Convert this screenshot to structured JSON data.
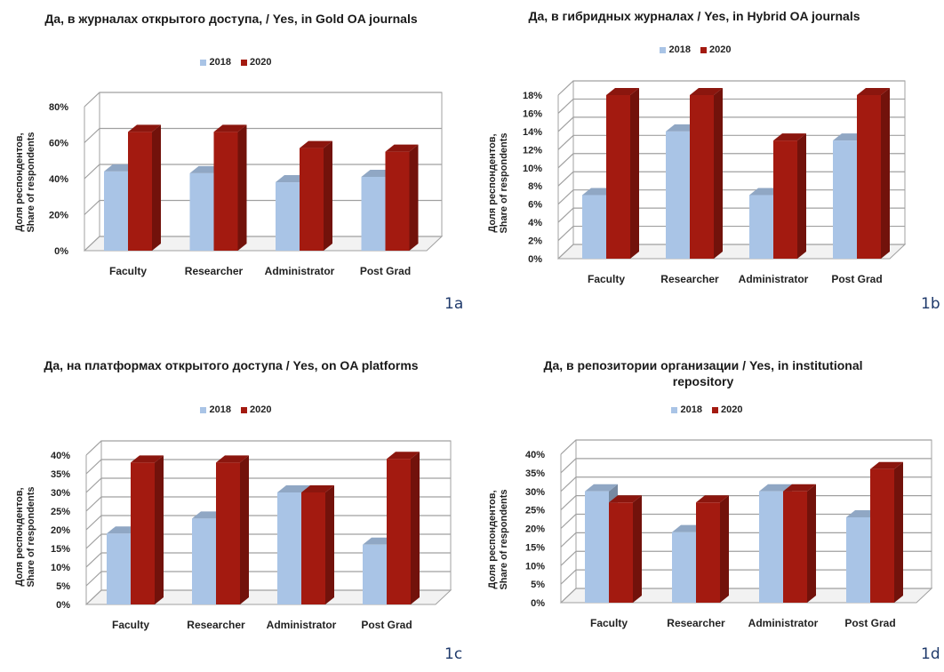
{
  "colors": {
    "c2018": "#a9c4e6",
    "c2020": "#a31a10",
    "grid": "#a0a0a0",
    "panel_label": "#1f3a6b"
  },
  "legend_labels": [
    "2018",
    "2020"
  ],
  "ylabel": {
    "line1": "Доля респондентов,",
    "line2": "Share of respondents"
  },
  "chart_data": [
    {
      "id": "1a",
      "type": "bar",
      "title": "Да, в журналах открытого доступа, / Yes, in Gold OA journals",
      "categories": [
        "Faculty",
        "Researcher",
        "Administrator",
        "Post Grad"
      ],
      "series": [
        {
          "name": "2018",
          "values": [
            44,
            43,
            38,
            41
          ]
        },
        {
          "name": "2020",
          "values": [
            66,
            66,
            57,
            55
          ]
        }
      ],
      "ylim": [
        0,
        80
      ],
      "yticks": [
        "0%",
        "20%",
        "40%",
        "60%",
        "80%"
      ],
      "ylabel": "Доля респондентов, Share of respondents",
      "panel_label": "1a"
    },
    {
      "id": "1b",
      "type": "bar",
      "title": "Да, в гибридных журналах / Yes, in Hybrid OA journals",
      "categories": [
        "Faculty",
        "Researcher",
        "Administrator",
        "Post Grad"
      ],
      "series": [
        {
          "name": "2018",
          "values": [
            7,
            14,
            7,
            13
          ]
        },
        {
          "name": "2020",
          "values": [
            18,
            18,
            13,
            18
          ]
        }
      ],
      "ylim": [
        0,
        18
      ],
      "yticks": [
        "0%",
        "2%",
        "4%",
        "6%",
        "8%",
        "10%",
        "12%",
        "14%",
        "16%",
        "18%"
      ],
      "ylabel": "Доля респондентов, Share of respondents",
      "panel_label": "1b"
    },
    {
      "id": "1c",
      "type": "bar",
      "title": "Да, на  платформах открытого доступа / Yes, on OA platforms",
      "categories": [
        "Faculty",
        "Researcher",
        "Administrator",
        "Post Grad"
      ],
      "series": [
        {
          "name": "2018",
          "values": [
            19,
            23,
            30,
            16
          ]
        },
        {
          "name": "2020",
          "values": [
            38,
            38,
            30,
            39
          ]
        }
      ],
      "ylim": [
        0,
        40
      ],
      "yticks": [
        "0%",
        "5%",
        "10%",
        "15%",
        "20%",
        "25%",
        "30%",
        "35%",
        "40%"
      ],
      "ylabel": "Доля респондентов, Share of respondents",
      "panel_label": "1c"
    },
    {
      "id": "1d",
      "type": "bar",
      "title": "Да, в репозитории организации / Yes, in institutional repository",
      "categories": [
        "Faculty",
        "Researcher",
        "Administrator",
        "Post Grad"
      ],
      "series": [
        {
          "name": "2018",
          "values": [
            30,
            19,
            30,
            23
          ]
        },
        {
          "name": "2020",
          "values": [
            27,
            27,
            30,
            36
          ]
        }
      ],
      "ylim": [
        0,
        40
      ],
      "yticks": [
        "0%",
        "5%",
        "10%",
        "15%",
        "20%",
        "25%",
        "30%",
        "35%",
        "40%"
      ],
      "ylabel": "Доля респондентов, Share of respondents",
      "panel_label": "1d"
    }
  ]
}
